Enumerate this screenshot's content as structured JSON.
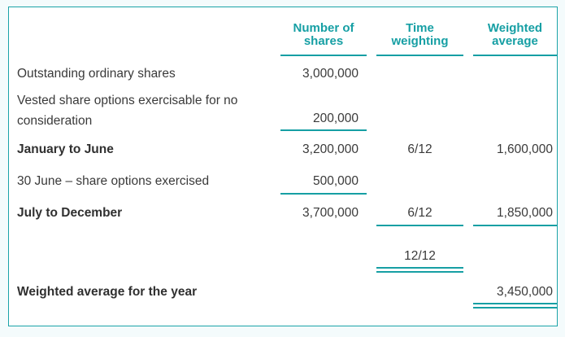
{
  "colors": {
    "accent": "#169fa4",
    "border": "#1ba3a8",
    "text": "#3a3a3a",
    "panel_bg": "#ffffff",
    "page_bg": "#f4fbfc"
  },
  "table": {
    "headers": {
      "shares": [
        "Number of",
        "shares"
      ],
      "time": [
        "Time",
        "weighting"
      ],
      "avg": [
        "Weighted",
        "average"
      ]
    },
    "rows": [
      {
        "label": "Outstanding ordinary shares",
        "shares": "3,000,000"
      },
      {
        "label": "Vested share options exercisable for no consideration",
        "shares": "200,000"
      },
      {
        "label": "January to June",
        "shares": "3,200,000",
        "time": "6/12",
        "avg": "1,600,000"
      },
      {
        "label": "30 June – share options exercised",
        "shares": "500,000"
      },
      {
        "label": "July to December",
        "shares": "3,700,000",
        "time": "6/12",
        "avg": "1,850,000"
      },
      {
        "time": "12/12"
      },
      {
        "label": "Weighted average for the year",
        "avg": "3,450,000"
      }
    ]
  }
}
